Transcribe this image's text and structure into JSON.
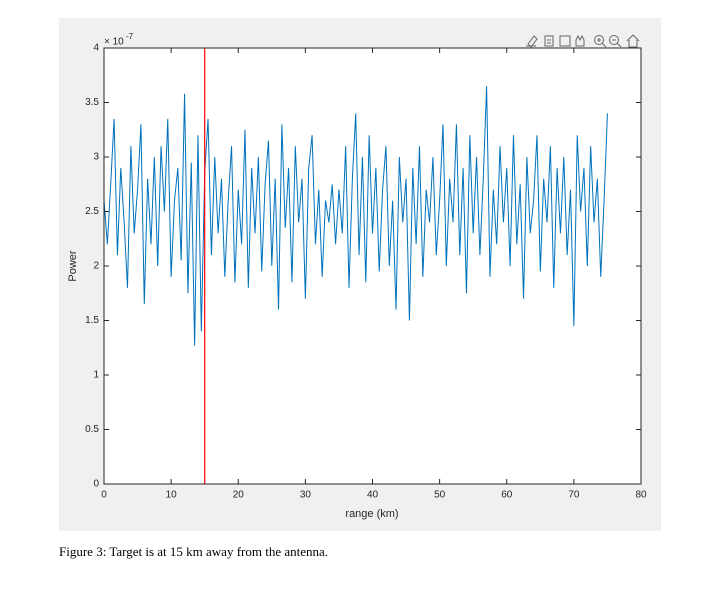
{
  "chart_data": {
    "type": "line",
    "x_label": "range (km)",
    "y_label": "Power",
    "y_multiplier": "× 10",
    "y_multiplier_exponent": "-7",
    "caption": "Figure 3: Target is at 15 km away from the antenna.",
    "color": "#0072bd",
    "xlim": [
      0,
      80
    ],
    "xticks": [
      0,
      10,
      20,
      30,
      40,
      50,
      60,
      70,
      80
    ],
    "ylim": [
      0,
      4
    ],
    "yticks": [
      0,
      0.5,
      1,
      1.5,
      2,
      2.5,
      3,
      3.5,
      4
    ],
    "grid": false,
    "vline": {
      "x": 15,
      "color": "#ff0000"
    },
    "x": [
      0,
      0.5,
      1,
      1.5,
      2,
      2.5,
      3,
      3.5,
      4,
      4.5,
      5,
      5.5,
      6,
      6.5,
      7,
      7.5,
      8,
      8.5,
      9,
      9.5,
      10,
      10.5,
      11,
      11.5,
      12,
      12.5,
      13,
      13.5,
      14,
      14.5,
      15,
      15.5,
      16,
      16.5,
      17,
      17.5,
      18,
      18.5,
      19,
      19.5,
      20,
      20.5,
      21,
      21.5,
      22,
      22.5,
      23,
      23.5,
      24,
      24.5,
      25,
      25.5,
      26,
      26.5,
      27,
      27.5,
      28,
      28.5,
      29,
      29.5,
      30,
      30.5,
      31,
      31.5,
      32,
      32.5,
      33,
      33.5,
      34,
      34.5,
      35,
      35.5,
      36,
      36.5,
      37,
      37.5,
      38,
      38.5,
      39,
      39.5,
      40,
      40.5,
      41,
      41.5,
      42,
      42.5,
      43,
      43.5,
      44,
      44.5,
      45,
      45.5,
      46,
      46.5,
      47,
      47.5,
      48,
      48.5,
      49,
      49.5,
      50,
      50.5,
      51,
      51.5,
      52,
      52.5,
      53,
      53.5,
      54,
      54.5,
      55,
      55.5,
      56,
      56.5,
      57,
      57.5,
      58,
      58.5,
      59,
      59.5,
      60,
      60.5,
      61,
      61.5,
      62,
      62.5,
      63,
      63.5,
      64,
      64.5,
      65,
      65.5,
      66,
      66.5,
      67,
      67.5,
      68,
      68.5,
      69,
      69.5,
      70,
      70.5,
      71,
      71.5,
      72,
      72.5,
      73,
      73.5,
      74,
      74.5,
      75
    ],
    "values": [
      2.6,
      2.2,
      2.75,
      3.35,
      2.1,
      2.9,
      2.4,
      1.8,
      3.1,
      2.3,
      2.7,
      3.3,
      1.65,
      2.8,
      2.2,
      3.0,
      2.0,
      3.1,
      2.5,
      3.35,
      1.9,
      2.6,
      2.9,
      2.05,
      3.58,
      1.75,
      2.95,
      1.27,
      3.2,
      1.4,
      2.85,
      3.35,
      2.1,
      3.0,
      2.3,
      2.8,
      1.9,
      2.6,
      3.1,
      1.85,
      2.7,
      2.2,
      3.25,
      1.8,
      2.9,
      2.3,
      3.0,
      1.95,
      2.75,
      3.15,
      2.0,
      2.8,
      1.6,
      3.3,
      2.35,
      2.9,
      1.85,
      3.1,
      2.4,
      2.8,
      1.7,
      2.9,
      3.2,
      2.2,
      2.7,
      1.9,
      2.6,
      2.4,
      2.75,
      2.2,
      2.7,
      2.3,
      3.1,
      1.8,
      2.8,
      3.4,
      2.1,
      3.0,
      1.85,
      3.2,
      2.3,
      2.9,
      1.95,
      2.7,
      3.1,
      2.0,
      2.6,
      1.6,
      3.0,
      2.4,
      2.8,
      1.5,
      2.9,
      2.2,
      3.1,
      1.9,
      2.7,
      2.4,
      3.0,
      2.1,
      2.6,
      3.3,
      2.0,
      2.8,
      2.4,
      3.3,
      2.1,
      2.9,
      1.75,
      3.2,
      2.3,
      3.0,
      2.1,
      2.8,
      3.65,
      1.9,
      2.7,
      2.2,
      3.1,
      2.4,
      2.9,
      2.0,
      3.2,
      2.2,
      2.75,
      1.7,
      3.0,
      2.3,
      2.6,
      3.2,
      1.95,
      2.8,
      2.4,
      3.1,
      1.8,
      2.9,
      2.3,
      3.0,
      2.1,
      2.7,
      1.45,
      3.2,
      2.5,
      2.9,
      2.0,
      3.1,
      2.4,
      2.8,
      1.9,
      2.6,
      3.4
    ]
  }
}
